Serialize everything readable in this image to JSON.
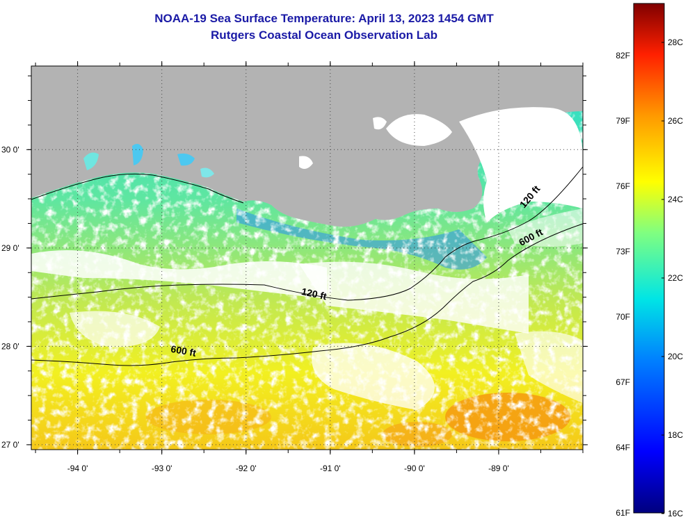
{
  "title": {
    "line1": "NOAA-19 Sea Surface Temperature:  April 13, 2023 1454 GMT",
    "line2": "Rutgers Coastal Ocean Observation Lab"
  },
  "axes": {
    "x_ticks": [
      {
        "lon": -94,
        "label": "-94 0'"
      },
      {
        "lon": -93,
        "label": "-93 0'"
      },
      {
        "lon": -92,
        "label": "-92 0'"
      },
      {
        "lon": -91,
        "label": "-91 0'"
      },
      {
        "lon": -90,
        "label": "-90 0'"
      },
      {
        "lon": -89,
        "label": "-89 0'"
      }
    ],
    "y_ticks": [
      {
        "lat": 30,
        "label": "30 0'"
      },
      {
        "lat": 29,
        "label": "29 0'"
      },
      {
        "lat": 28,
        "label": "28 0'"
      },
      {
        "lat": 27,
        "label": "27 0'"
      }
    ],
    "lon_range": [
      -94.55,
      -88.0
    ],
    "lat_range": [
      26.95,
      30.85
    ]
  },
  "contours": [
    {
      "label": "120 ft",
      "lon": -91.2,
      "lat": 28.5
    },
    {
      "label": "600 ft",
      "lon": -92.75,
      "lat": 27.92
    },
    {
      "label": "120 ft",
      "lon": -88.6,
      "lat": 29.5
    },
    {
      "label": "600 ft",
      "lon": -88.6,
      "lat": 29.08
    }
  ],
  "colorbar": {
    "fahrenheit": [
      "82F",
      "79F",
      "76F",
      "73F",
      "70F",
      "67F",
      "64F",
      "61F"
    ],
    "celsius": [
      "28C",
      "26C",
      "24C",
      "22C",
      "20C",
      "18C",
      "16C"
    ],
    "range_c": [
      16,
      29
    ]
  },
  "colors": {
    "land": "#b3b3b3",
    "cloud": "#ffffff",
    "title": "#1a1aa6"
  }
}
